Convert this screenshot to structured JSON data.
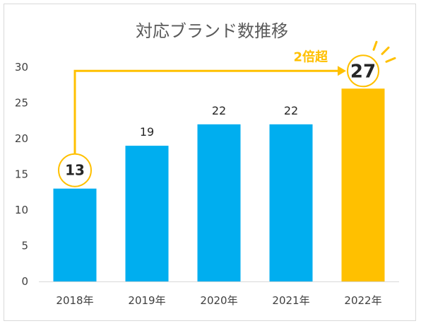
{
  "chart_data": {
    "type": "bar",
    "title": "対応ブランド数推移",
    "categories": [
      "2018年",
      "2019年",
      "2020年",
      "2021年",
      "2022年"
    ],
    "values": [
      13,
      19,
      22,
      22,
      27
    ],
    "ylim": [
      0,
      30
    ],
    "yticks": [
      "0",
      "5",
      "10",
      "15",
      "20",
      "25",
      "30"
    ],
    "grid": false,
    "legend": "none",
    "highlight_index": 4,
    "circled_indices": [
      0,
      4
    ],
    "annotation": "2倍超",
    "colors": {
      "bar": "#00aeef",
      "highlight": "#ffc000",
      "text": "#404040"
    }
  }
}
